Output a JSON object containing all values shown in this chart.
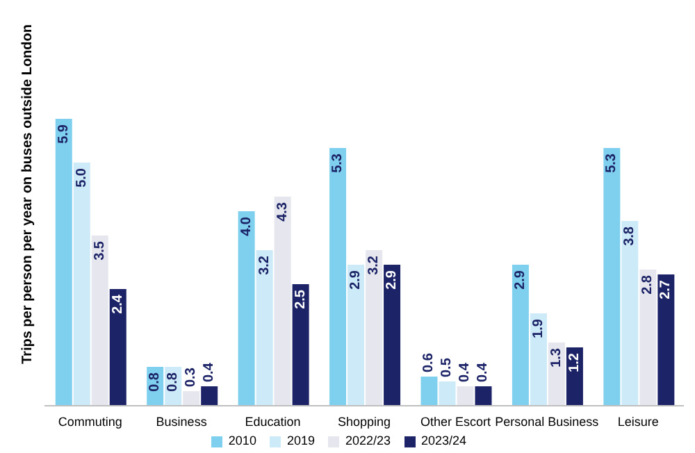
{
  "chart_data": {
    "type": "bar",
    "ylabel": "Trips per person per year on buses outside London",
    "categories": [
      "Commuting",
      "Business",
      "Education",
      "Shopping",
      "Other Escort",
      "Personal Business",
      "Leisure"
    ],
    "series": [
      {
        "name": "2010",
        "color": "#7fd0ef",
        "values": [
          5.9,
          0.8,
          4.0,
          5.3,
          0.6,
          2.9,
          5.3
        ],
        "value_labels": [
          "5.9",
          "0.8",
          "4.0",
          "5.3",
          "0.6",
          "2.9",
          "5.3"
        ]
      },
      {
        "name": "2019",
        "color": "#cdeaf8",
        "values": [
          5.0,
          0.8,
          3.2,
          2.9,
          0.5,
          1.9,
          3.8
        ],
        "value_labels": [
          "5.0",
          "0.8",
          "3.2",
          "2.9",
          "0.5",
          "1.9",
          "3.8"
        ]
      },
      {
        "name": "2022/23",
        "color": "#e6e7ee",
        "values": [
          3.5,
          0.3,
          4.3,
          3.2,
          0.4,
          1.3,
          2.8
        ],
        "value_labels": [
          "3.5",
          "0.3",
          "4.3",
          "3.2",
          "0.4",
          "1.3",
          "2.8"
        ]
      },
      {
        "name": "2023/24",
        "color": "#1c2366",
        "values": [
          2.4,
          0.4,
          2.5,
          2.9,
          0.4,
          1.2,
          2.7
        ],
        "value_labels": [
          "2.4",
          "0.4",
          "2.5",
          "2.9",
          "0.4",
          "1.2",
          "2.7"
        ]
      }
    ],
    "tick_labels": "x",
    "grid": false,
    "legend": "bottom"
  }
}
